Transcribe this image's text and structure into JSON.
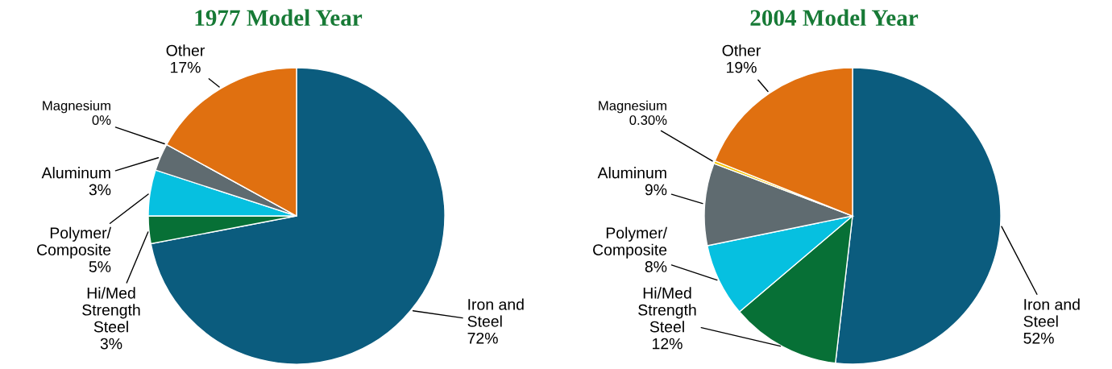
{
  "chart_data": [
    {
      "type": "pie",
      "title": "1977 Model Year",
      "categories": [
        "Iron and\nSteel",
        "Hi/Med\nStrength\nSteel",
        "Polymer/\nComposite",
        "Aluminum",
        "Magnesium",
        "Other"
      ],
      "values": [
        72,
        3,
        5,
        3,
        0,
        17
      ],
      "value_labels": [
        "72%",
        "3%",
        "5%",
        "3%",
        "0%",
        "17%"
      ],
      "colors": [
        "#0b5c7e",
        "#077036",
        "#06c0e0",
        "#5f6b70",
        "#f5c400",
        "#e07010"
      ]
    },
    {
      "type": "pie",
      "title": "2004 Model Year",
      "categories": [
        "Iron and\nSteel",
        "Hi/Med\nStrength\nSteel",
        "Polymer/\nComposite",
        "Aluminum",
        "Magnesium",
        "Other"
      ],
      "values": [
        52,
        12,
        8,
        9,
        0.3,
        19
      ],
      "value_labels": [
        "52%",
        "12%",
        "8%",
        "9%",
        "0.30%",
        "19%"
      ],
      "colors": [
        "#0b5c7e",
        "#077036",
        "#06c0e0",
        "#5f6b70",
        "#f5c400",
        "#e07010"
      ]
    }
  ]
}
